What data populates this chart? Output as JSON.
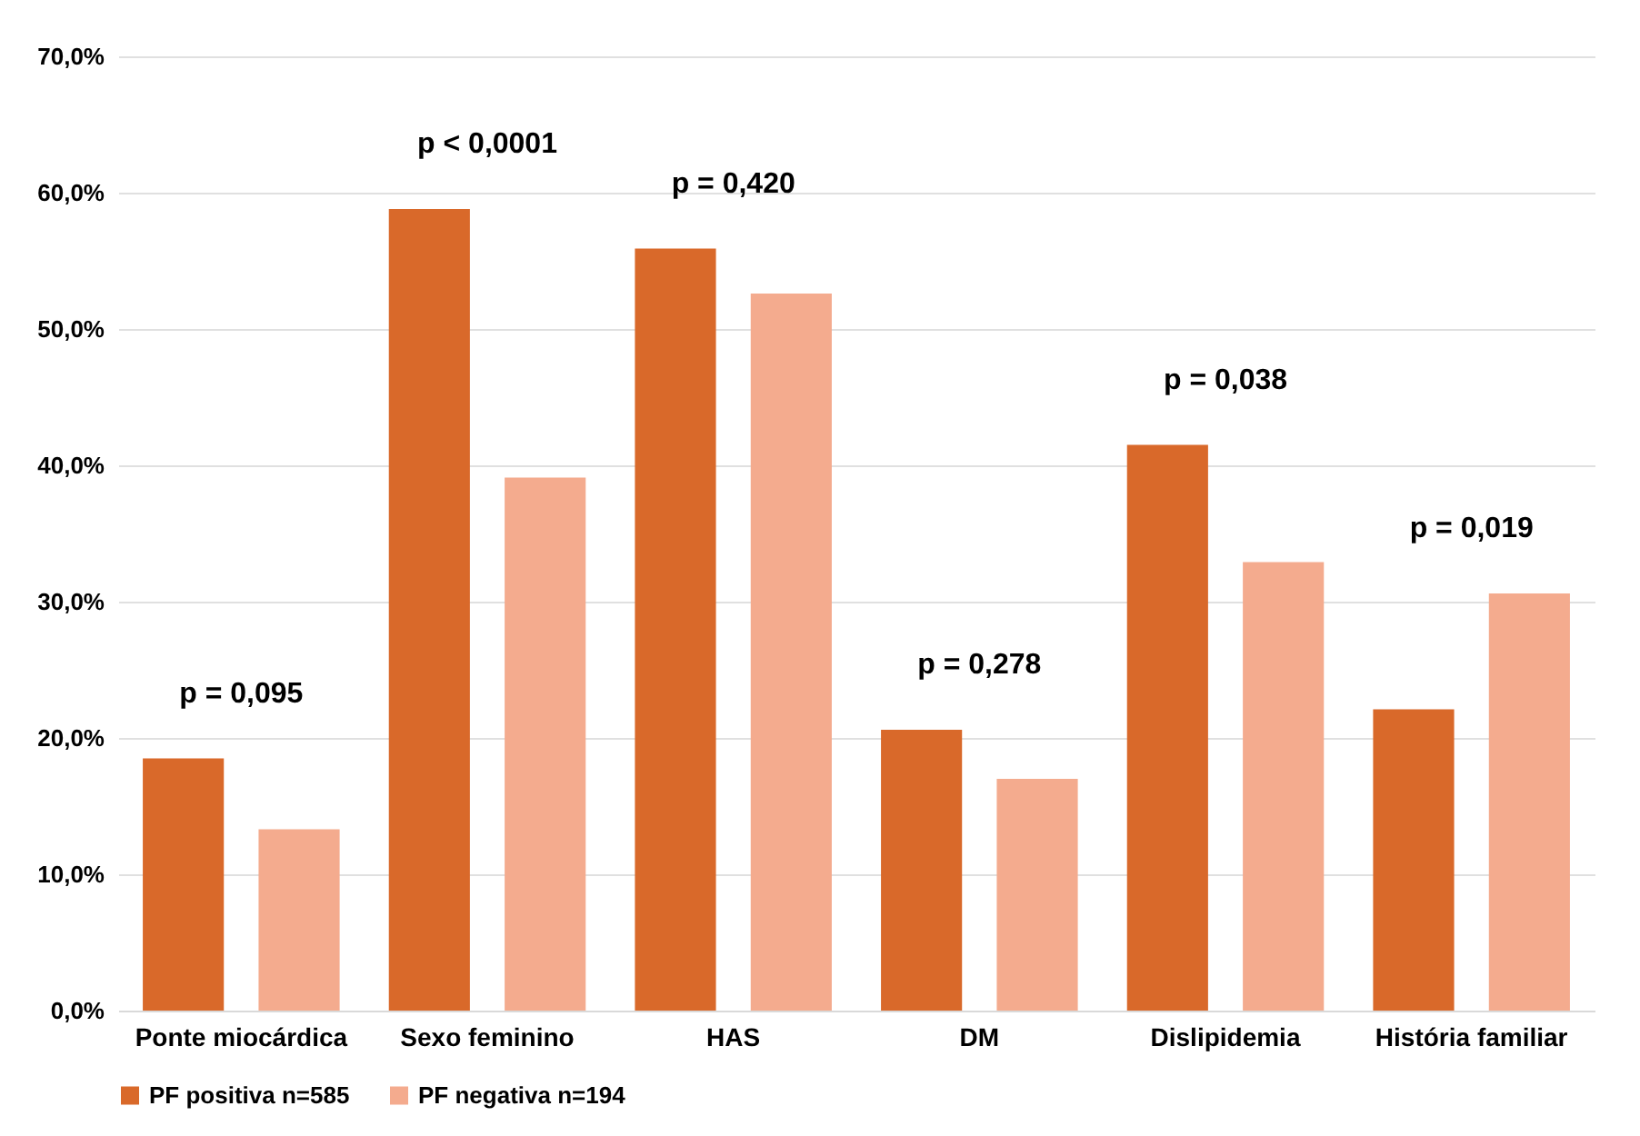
{
  "chart_data": {
    "type": "bar",
    "categories": [
      "Ponte miocárdica",
      "Sexo feminino",
      "HAS",
      "DM",
      "Dislipidemia",
      "História familiar"
    ],
    "series": [
      {
        "name": "PF positiva n=585",
        "color": "#d9692a",
        "values": [
          18.5,
          58.8,
          55.9,
          20.6,
          41.5,
          22.1
        ]
      },
      {
        "name": "PF negativa n=194",
        "color": "#f4ab8e",
        "values": [
          13.3,
          39.1,
          52.6,
          17.0,
          32.9,
          30.6
        ]
      }
    ],
    "ylim": [
      0,
      70
    ],
    "yticks": [
      {
        "value": 0,
        "label": "0,0%"
      },
      {
        "value": 10,
        "label": "10,0%"
      },
      {
        "value": 20,
        "label": "20,0%"
      },
      {
        "value": 30,
        "label": "30,0%"
      },
      {
        "value": 40,
        "label": "40,0%"
      },
      {
        "value": 50,
        "label": "50,0%"
      },
      {
        "value": 60,
        "label": "60,0%"
      },
      {
        "value": 70,
        "label": "70,0%"
      }
    ],
    "grid": "y",
    "legend": "bottom",
    "annotations": [
      "p = 0,095",
      "p < 0,0001",
      "p = 0,420",
      "p = 0,278",
      "p = 0,038",
      "p = 0,019"
    ]
  }
}
